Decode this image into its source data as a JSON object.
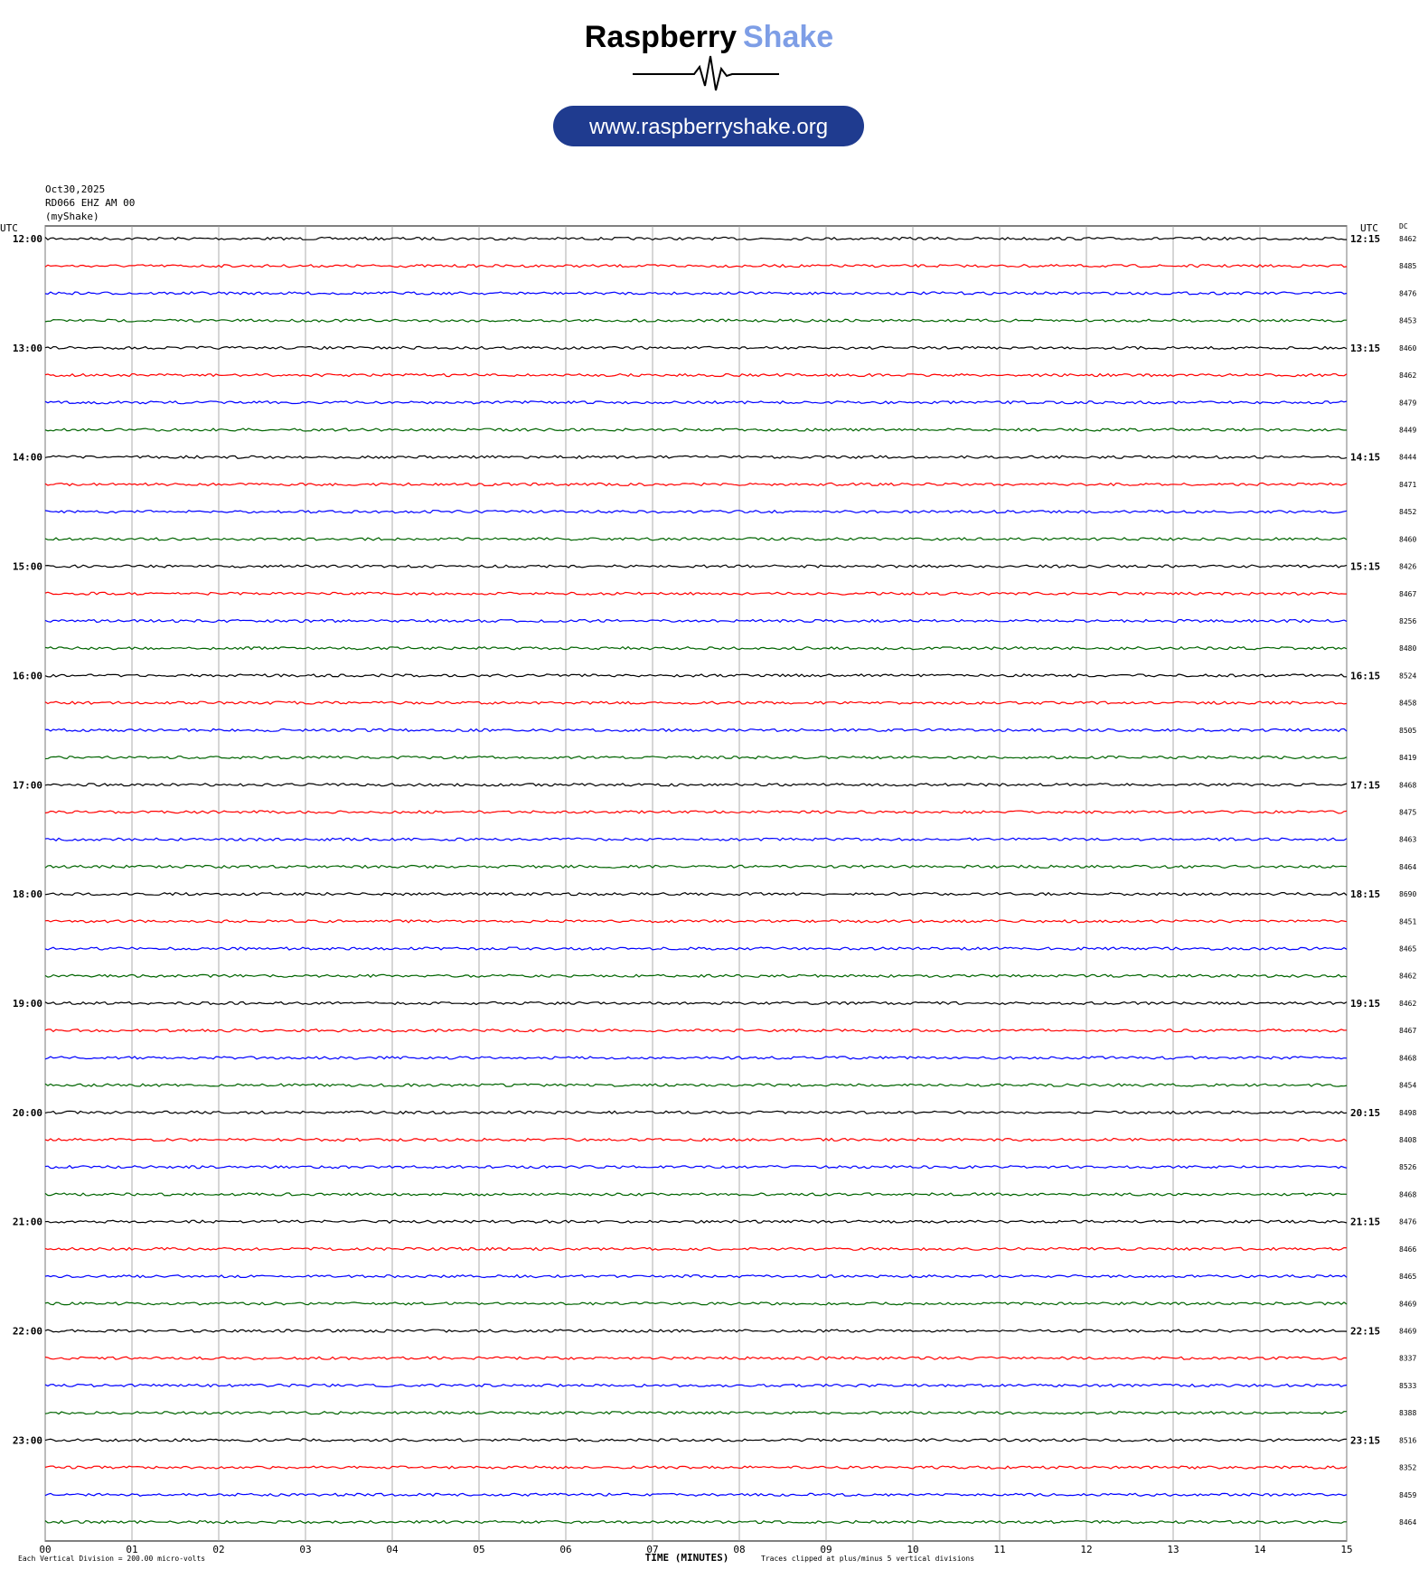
{
  "header": {
    "brand_dark": "Raspberry",
    "brand_light": "Shake",
    "url": "www.raspberryshake.org"
  },
  "meta": {
    "date": "Oct30,2025",
    "station": "RD066 EHZ AM 00",
    "network": "(myShake)"
  },
  "plot": {
    "left_axis_label": "UTC",
    "right_axis_label": "UTC",
    "dc_label": "DC",
    "hour_labels": [
      "12:00",
      "13:00",
      "14:00",
      "15:00",
      "16:00",
      "17:00",
      "18:00",
      "19:00",
      "20:00",
      "21:00",
      "22:00",
      "23:00"
    ],
    "quarter_labels": [
      "12:15",
      "13:15",
      "14:15",
      "15:15",
      "16:15",
      "17:15",
      "18:15",
      "19:15",
      "20:15",
      "21:15",
      "22:15",
      "23:15"
    ],
    "dc_values": [
      8462,
      8485,
      8476,
      8453,
      8460,
      8462,
      8479,
      8449,
      8444,
      8471,
      8452,
      8460,
      8426,
      8467,
      8256,
      8480,
      8524,
      8458,
      8505,
      8419,
      8468,
      8475,
      8463,
      8464,
      8690,
      8451,
      8465,
      8462,
      8462,
      8467,
      8468,
      8454,
      8498,
      8408,
      8526,
      8468,
      8476,
      8466,
      8465,
      8469,
      8469,
      8337,
      8533,
      8388,
      8516,
      8352,
      8459,
      8464
    ],
    "trace_colors": [
      "#000000",
      "#ff0000",
      "#0000ff",
      "#006400"
    ],
    "x_ticks": [
      "00",
      "01",
      "02",
      "03",
      "04",
      "05",
      "06",
      "07",
      "08",
      "09",
      "10",
      "11",
      "12",
      "13",
      "14",
      "15"
    ],
    "x_label": "TIME (MINUTES)",
    "footer_left": "Each Vertical Division =  200.00 micro-volts",
    "footer_right": "Traces clipped at plus/minus 5 vertical divisions"
  }
}
